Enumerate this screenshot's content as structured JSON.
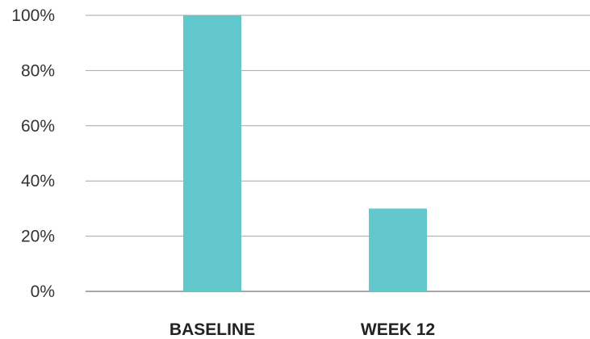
{
  "chart_data": {
    "type": "bar",
    "categories": [
      "BASELINE",
      "WEEK 12"
    ],
    "values": [
      100,
      30
    ],
    "ylim": [
      0,
      100
    ],
    "yticks": [
      "0%",
      "20%",
      "40%",
      "60%",
      "80%",
      "100%"
    ],
    "ytick_values": [
      0,
      20,
      40,
      60,
      80,
      100
    ],
    "grid": true,
    "legend": "none",
    "bar_color": "#63c8cc",
    "grid_color": "#a6a6a6",
    "axis_color": "#8c8c8c"
  }
}
